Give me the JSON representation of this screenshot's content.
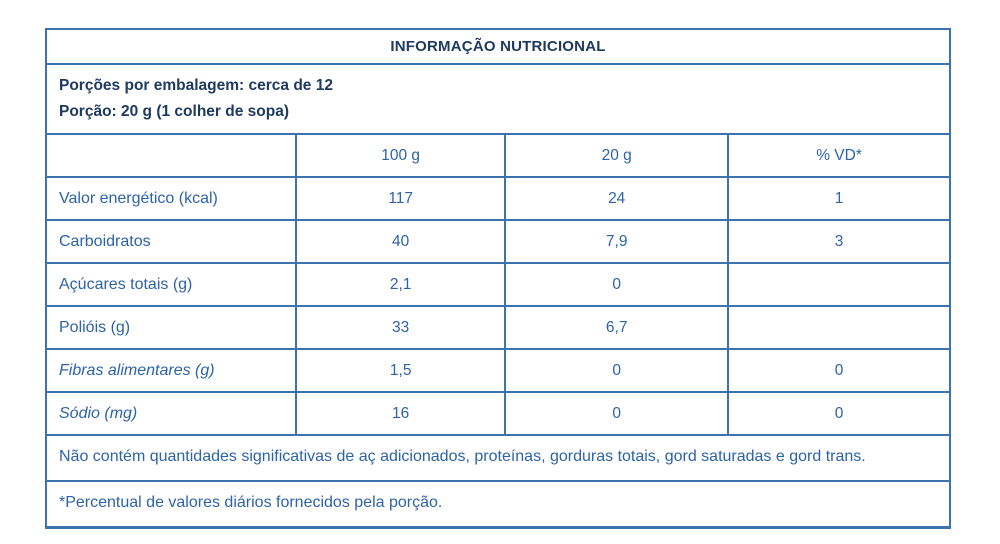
{
  "title": "INFORMAÇÃO NUTRICIONAL",
  "serving": {
    "line1": "Porções por embalagem: cerca de 12",
    "line2": "Porção: 20 g (1 colher de sopa)"
  },
  "table": {
    "columns": [
      "",
      "100 g",
      "20 g",
      "% VD*"
    ],
    "rows": [
      {
        "label": "Valor energético (kcal)",
        "values": [
          "117",
          "24",
          "1"
        ]
      },
      {
        "label": "Carboidratos",
        "values": [
          "40",
          "7,9",
          "3"
        ]
      },
      {
        "label": "Açúcares totais (g)",
        "values": [
          "2,1",
          "0",
          ""
        ]
      },
      {
        "label": "Polióis (g)",
        "values": [
          "33",
          "6,7",
          ""
        ]
      },
      {
        "label": "Fibras alimentares (g)",
        "values": [
          "1,5",
          "0",
          "0"
        ]
      },
      {
        "label": "Sódio (mg)",
        "values": [
          "16",
          "0",
          "0"
        ]
      }
    ]
  },
  "notes": {
    "no_significant": "Não contém quantidades significativas de aç adicionados, proteínas, gorduras totais, gord saturadas e gord trans.",
    "daily_values": "*Percentual de valores diários fornecidos pela porção."
  },
  "colors": {
    "border": "#3c72ae",
    "text_blue": "#2d63a8",
    "text_navy": "#1e3a60"
  }
}
